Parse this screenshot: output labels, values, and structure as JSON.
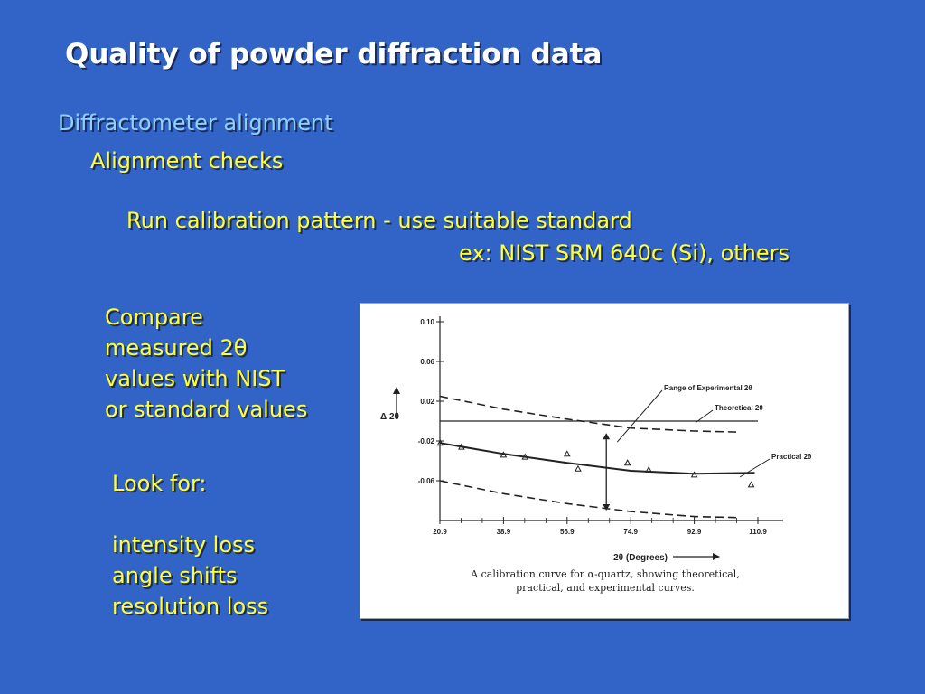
{
  "slide": {
    "title": "Quality of powder diffraction data",
    "subtitle1": "Diffractometer alignment",
    "subtitle2": "Alignment checks",
    "run_line": "Run calibration pattern - use suitable standard",
    "ex_line": "ex: NIST SRM 640c (Si), others",
    "compare_lines": [
      "Compare",
      "measured 2θ",
      "values with NIST",
      "or standard values"
    ],
    "lookfor_lines": [
      "Look for:",
      "",
      "intensity loss",
      "angle shifts",
      "resolution loss"
    ]
  },
  "figure": {
    "caption_line1": "A calibration curve for α-quartz, showing theoretical,",
    "caption_line2": "practical, and experimental curves.",
    "label_range": "Range of Experimental 2θ",
    "label_theoretical": "Theoretical 2θ",
    "label_practical": "Practical 2θ",
    "ylabel": "Δ 2θ",
    "xlabel": "2θ (Degrees)"
  },
  "chart_data": {
    "type": "line",
    "xlabel": "2θ (Degrees)",
    "ylabel": "Δ 2θ",
    "x_ticks": [
      20.9,
      38.9,
      56.9,
      74.9,
      92.9,
      110.9
    ],
    "x_tick_labels": [
      "20.9",
      "38.9",
      "56.9",
      "74.9",
      "92.9",
      "110.9"
    ],
    "y_ticks": [
      0.1,
      0.06,
      0.02,
      -0.02,
      -0.06
    ],
    "y_tick_labels": [
      "0.10",
      "0.06",
      "0.02",
      "-0.02",
      "-0.06"
    ],
    "xlim": [
      20.9,
      110.9
    ],
    "ylim": [
      -0.1,
      0.1
    ],
    "theoretical": {
      "x": [
        20.9,
        110.9
      ],
      "y": [
        0.0,
        0.0
      ]
    },
    "upper_bound": {
      "x": [
        20.9,
        38.9,
        56.9,
        74.9,
        92.9,
        105
      ],
      "y": [
        0.025,
        0.012,
        0.002,
        -0.007,
        -0.01,
        -0.011
      ]
    },
    "practical": {
      "x": [
        20.9,
        38.9,
        56.9,
        74.9,
        92.9,
        110
      ],
      "y": [
        -0.022,
        -0.033,
        -0.042,
        -0.05,
        -0.053,
        -0.052
      ]
    },
    "lower_bound": {
      "x": [
        20.9,
        38.9,
        56.9,
        74.9,
        92.9,
        105
      ],
      "y": [
        -0.06,
        -0.073,
        -0.083,
        -0.091,
        -0.096,
        -0.097
      ]
    },
    "points": {
      "x": [
        21,
        27,
        38.9,
        45,
        56.9,
        60,
        74,
        80,
        92.9,
        109
      ],
      "y": [
        -0.022,
        -0.026,
        -0.034,
        -0.036,
        -0.033,
        -0.048,
        -0.042,
        -0.049,
        -0.054,
        -0.064
      ]
    },
    "range_arrow": {
      "x": 68,
      "y_top": -0.012,
      "y_bottom": -0.09
    },
    "grid": false,
    "legend": "none"
  }
}
